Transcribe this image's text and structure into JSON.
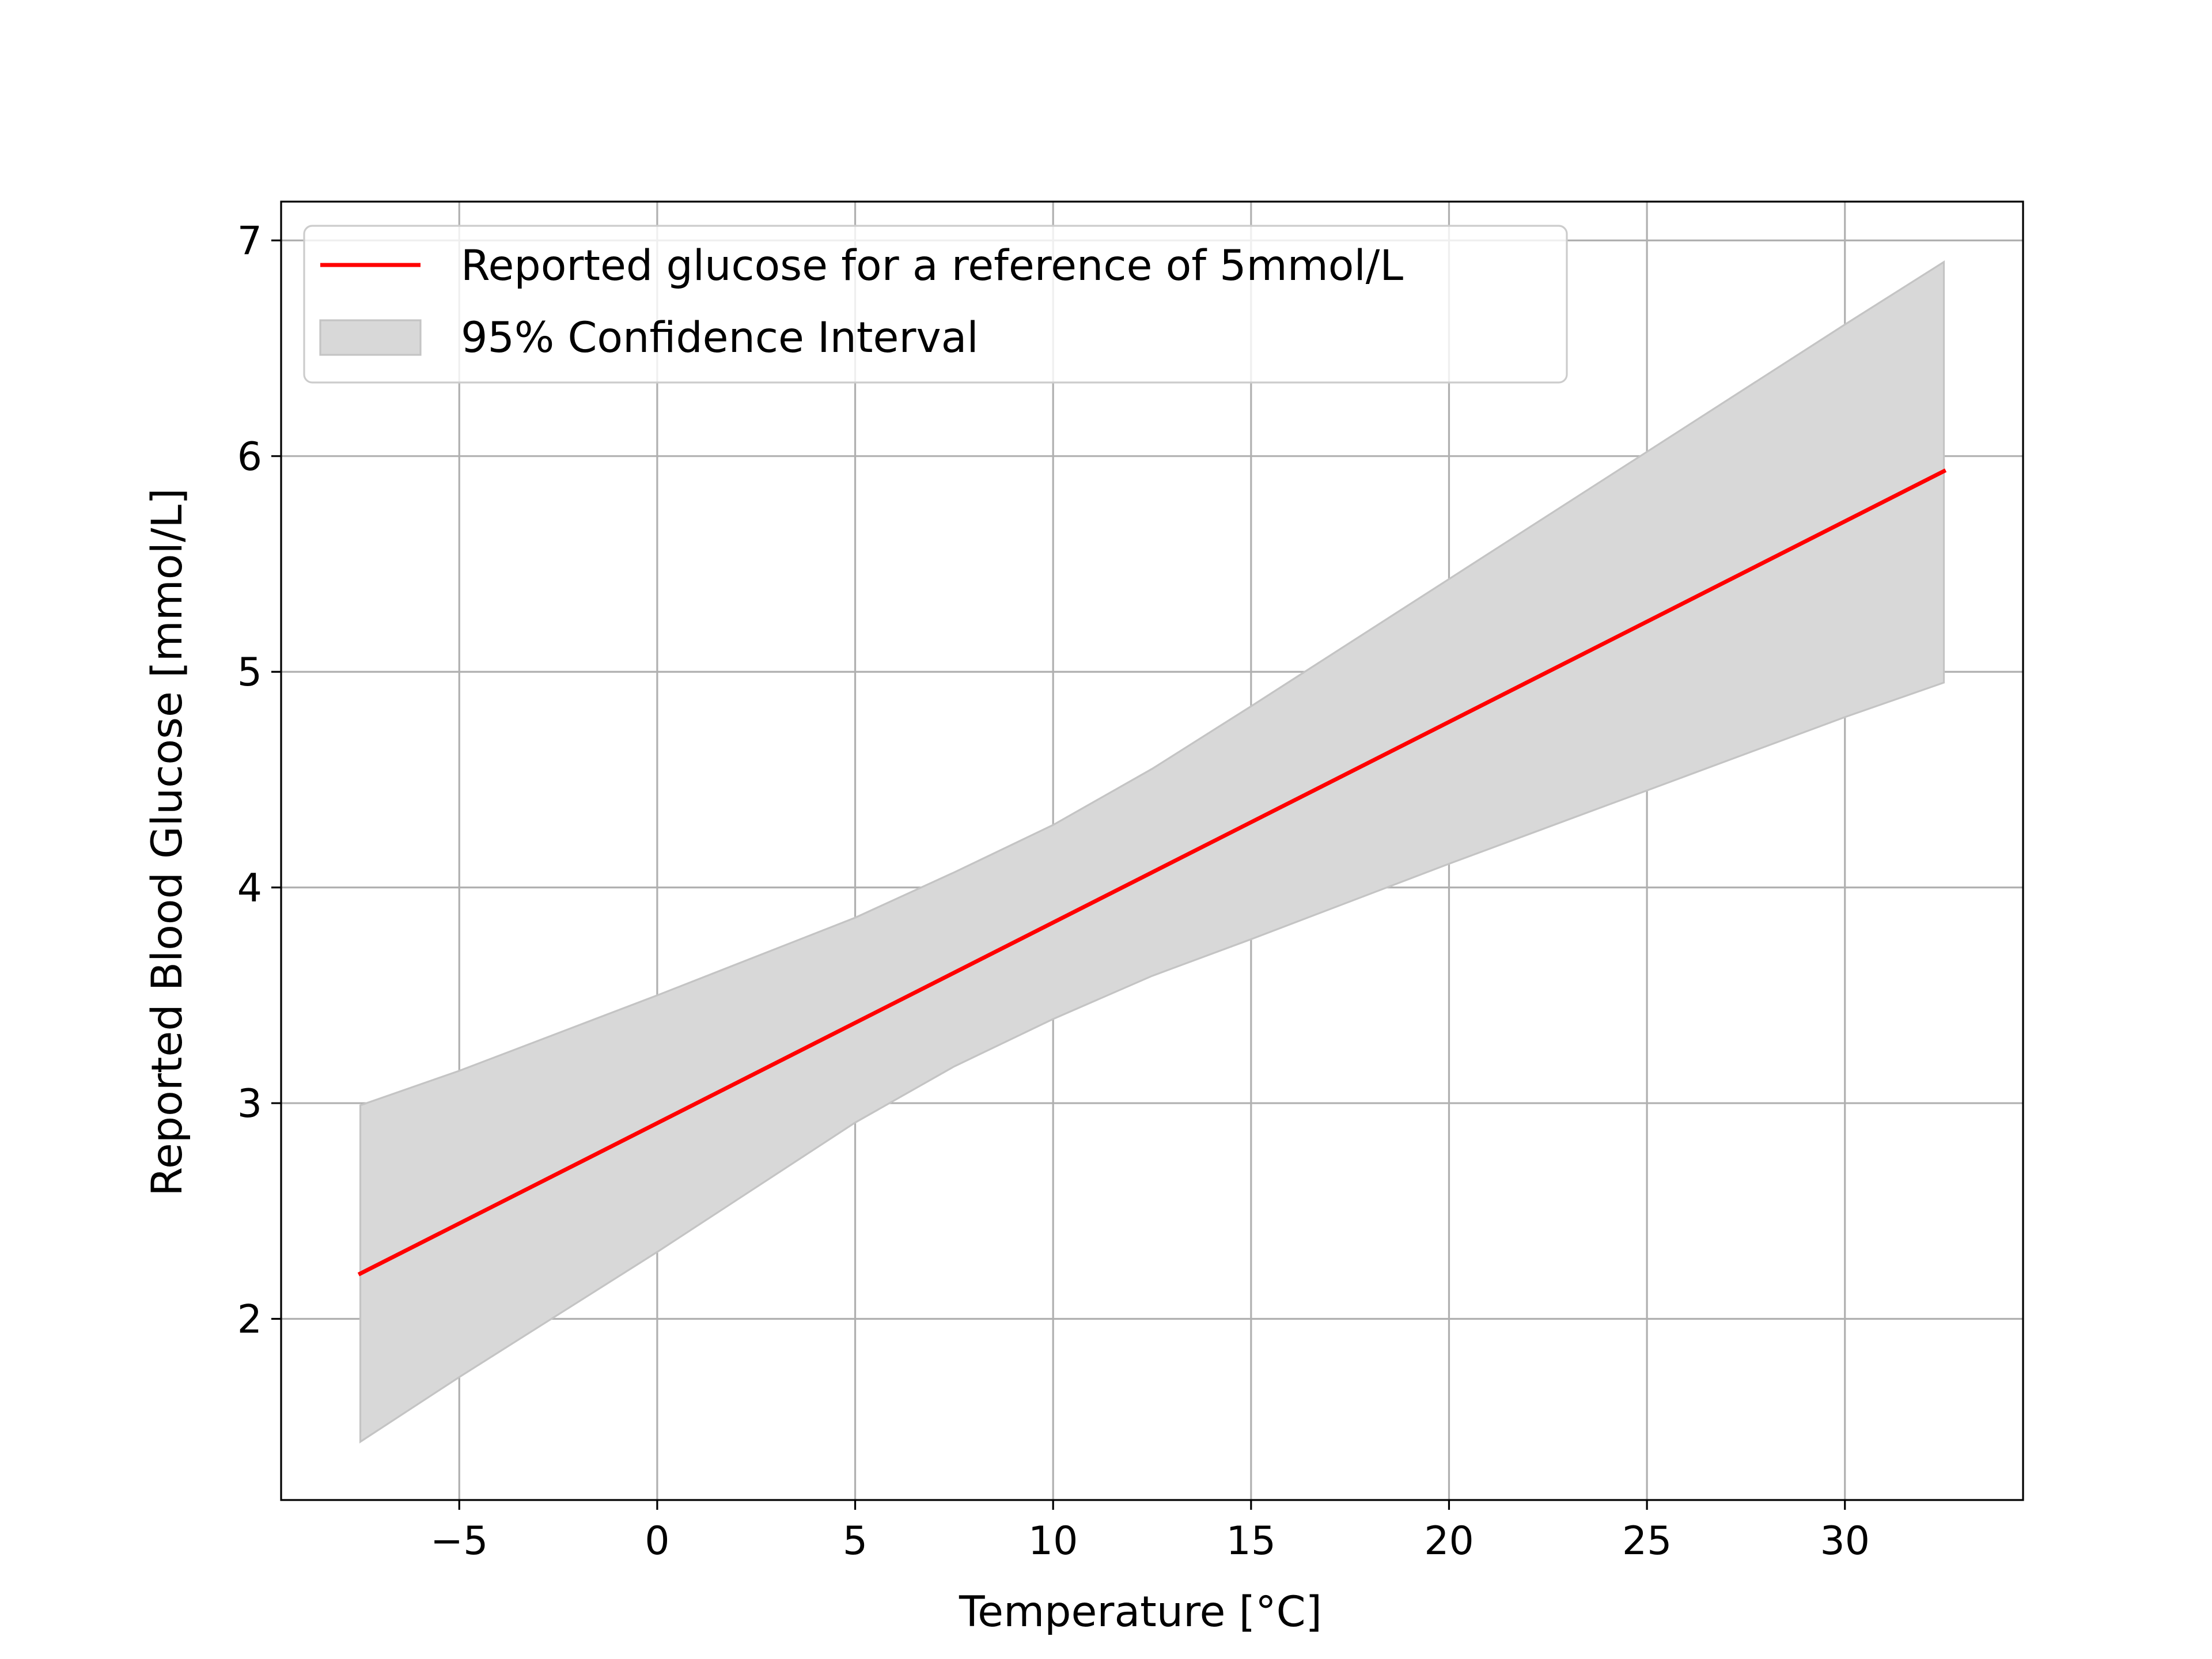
{
  "chart_data": {
    "type": "line",
    "title": "",
    "xlabel": "Temperature [°C]",
    "ylabel": "Reported Blood Glucose [mmol/L]",
    "xlim": [
      -9.5,
      34.5
    ],
    "ylim": [
      1.16,
      7.18
    ],
    "xticks": [
      -5,
      0,
      5,
      10,
      15,
      20,
      25,
      30
    ],
    "xtick_labels": [
      "−5",
      "0",
      "5",
      "10",
      "15",
      "20",
      "25",
      "30"
    ],
    "yticks": [
      2,
      3,
      4,
      5,
      6,
      7
    ],
    "ytick_labels": [
      "2",
      "3",
      "4",
      "5",
      "6",
      "7"
    ],
    "grid": true,
    "legend_position": "upper-left",
    "series": [
      {
        "name": "Reported glucose for a reference of 5mmol/L",
        "type": "line",
        "color": "#ff0000",
        "x": [
          -7.5,
          32.5
        ],
        "y": [
          2.21,
          5.93
        ]
      }
    ],
    "band": {
      "name": "95% Confidence Interval",
      "type": "area",
      "color": "#d8d8d8",
      "edge_color": "#c4c4c4",
      "x": [
        -7.5,
        -5,
        0,
        5,
        7.5,
        10,
        12.5,
        15,
        20,
        25,
        30,
        32.5
      ],
      "upper": [
        2.99,
        3.15,
        3.5,
        3.86,
        4.07,
        4.29,
        4.55,
        4.84,
        5.43,
        6.02,
        6.61,
        6.9
      ],
      "lower": [
        1.43,
        1.73,
        2.31,
        2.91,
        3.17,
        3.39,
        3.59,
        3.76,
        4.11,
        4.45,
        4.79,
        4.95
      ]
    }
  }
}
